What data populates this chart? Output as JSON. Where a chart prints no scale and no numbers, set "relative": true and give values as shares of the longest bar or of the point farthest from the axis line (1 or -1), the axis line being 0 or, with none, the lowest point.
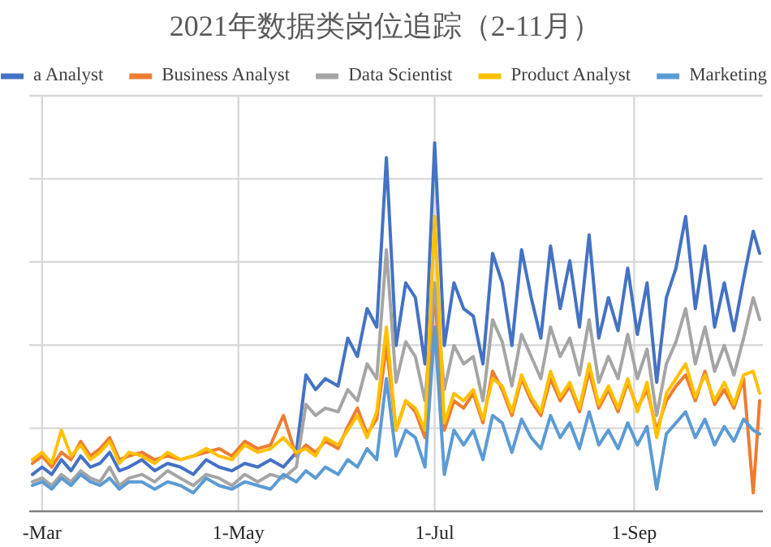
{
  "chart_data": {
    "type": "line",
    "title": "2021年数据类岗位追踪（2-11月）",
    "relative": true,
    "grid": true,
    "legend": "top",
    "marker": "none",
    "line_style": "solid",
    "xlim": [
      "2021-02-25",
      "2021-10-11"
    ],
    "xticks": [
      {
        "value": "2021-03-01",
        "label": "-Mar"
      },
      {
        "value": "2021-05-01",
        "label": "1-May"
      },
      {
        "value": "2021-07-01",
        "label": "1-Jul"
      },
      {
        "value": "2021-09-01",
        "label": "1-Sep"
      }
    ],
    "x": [
      "2021-02-26",
      "2021-03-01",
      "2021-03-04",
      "2021-03-07",
      "2021-03-10",
      "2021-03-13",
      "2021-03-16",
      "2021-03-19",
      "2021-03-22",
      "2021-03-25",
      "2021-03-28",
      "2021-04-01",
      "2021-04-05",
      "2021-04-09",
      "2021-04-13",
      "2021-04-17",
      "2021-04-21",
      "2021-04-25",
      "2021-04-29",
      "2021-05-03",
      "2021-05-07",
      "2021-05-11",
      "2021-05-15",
      "2021-05-19",
      "2021-05-22",
      "2021-05-25",
      "2021-05-28",
      "2021-06-01",
      "2021-06-04",
      "2021-06-07",
      "2021-06-10",
      "2021-06-13",
      "2021-06-16",
      "2021-06-19",
      "2021-06-22",
      "2021-06-25",
      "2021-06-28",
      "2021-07-01",
      "2021-07-04",
      "2021-07-07",
      "2021-07-10",
      "2021-07-13",
      "2021-07-16",
      "2021-07-19",
      "2021-07-22",
      "2021-07-25",
      "2021-07-28",
      "2021-07-31",
      "2021-08-03",
      "2021-08-06",
      "2021-08-09",
      "2021-08-12",
      "2021-08-15",
      "2021-08-18",
      "2021-08-21",
      "2021-08-24",
      "2021-08-27",
      "2021-08-30",
      "2021-09-02",
      "2021-09-05",
      "2021-09-08",
      "2021-09-11",
      "2021-09-14",
      "2021-09-17",
      "2021-09-20",
      "2021-09-23",
      "2021-09-26",
      "2021-09-29",
      "2021-10-02",
      "2021-10-05",
      "2021-10-08",
      "2021-10-10"
    ],
    "series": [
      {
        "name": "a Analyst",
        "color": "#4472c4",
        "values": [
          0.1,
          0.12,
          0.1,
          0.14,
          0.11,
          0.15,
          0.12,
          0.13,
          0.16,
          0.11,
          0.12,
          0.14,
          0.11,
          0.13,
          0.12,
          0.1,
          0.14,
          0.12,
          0.11,
          0.13,
          0.12,
          0.14,
          0.12,
          0.16,
          0.37,
          0.33,
          0.36,
          0.34,
          0.47,
          0.42,
          0.55,
          0.5,
          0.96,
          0.45,
          0.62,
          0.58,
          0.4,
          1.0,
          0.45,
          0.62,
          0.55,
          0.53,
          0.4,
          0.7,
          0.62,
          0.45,
          0.71,
          0.58,
          0.47,
          0.72,
          0.55,
          0.68,
          0.5,
          0.75,
          0.47,
          0.58,
          0.49,
          0.66,
          0.48,
          0.62,
          0.35,
          0.58,
          0.66,
          0.8,
          0.55,
          0.72,
          0.5,
          0.62,
          0.49,
          0.63,
          0.76,
          0.7
        ]
      },
      {
        "name": "Business Analyst",
        "color": "#ed7d31",
        "values": [
          0.13,
          0.15,
          0.12,
          0.16,
          0.14,
          0.19,
          0.15,
          0.17,
          0.2,
          0.14,
          0.15,
          0.16,
          0.14,
          0.15,
          0.14,
          0.15,
          0.16,
          0.17,
          0.15,
          0.19,
          0.17,
          0.18,
          0.26,
          0.15,
          0.18,
          0.16,
          0.19,
          0.17,
          0.23,
          0.28,
          0.21,
          0.25,
          0.45,
          0.22,
          0.3,
          0.27,
          0.2,
          0.6,
          0.22,
          0.3,
          0.28,
          0.32,
          0.24,
          0.38,
          0.33,
          0.26,
          0.36,
          0.3,
          0.26,
          0.36,
          0.3,
          0.34,
          0.27,
          0.38,
          0.28,
          0.33,
          0.27,
          0.35,
          0.28,
          0.33,
          0.22,
          0.3,
          0.34,
          0.37,
          0.3,
          0.38,
          0.29,
          0.33,
          0.28,
          0.36,
          0.05,
          0.3
        ]
      },
      {
        "name": "Data Scientist",
        "color": "#a5a5a5",
        "values": [
          0.08,
          0.09,
          0.07,
          0.1,
          0.08,
          0.11,
          0.09,
          0.08,
          0.12,
          0.07,
          0.09,
          0.1,
          0.08,
          0.11,
          0.09,
          0.07,
          0.1,
          0.09,
          0.07,
          0.1,
          0.08,
          0.1,
          0.09,
          0.12,
          0.29,
          0.26,
          0.28,
          0.27,
          0.33,
          0.3,
          0.4,
          0.36,
          0.71,
          0.35,
          0.46,
          0.42,
          0.3,
          0.62,
          0.33,
          0.45,
          0.4,
          0.42,
          0.3,
          0.52,
          0.46,
          0.34,
          0.48,
          0.42,
          0.36,
          0.5,
          0.42,
          0.47,
          0.37,
          0.52,
          0.35,
          0.42,
          0.36,
          0.48,
          0.36,
          0.44,
          0.26,
          0.4,
          0.46,
          0.55,
          0.4,
          0.5,
          0.38,
          0.45,
          0.37,
          0.47,
          0.58,
          0.52
        ]
      },
      {
        "name": "Product Analyst",
        "color": "#ffc000",
        "values": [
          0.14,
          0.16,
          0.13,
          0.22,
          0.15,
          0.18,
          0.14,
          0.16,
          0.19,
          0.13,
          0.16,
          0.15,
          0.13,
          0.16,
          0.14,
          0.15,
          0.17,
          0.15,
          0.14,
          0.18,
          0.16,
          0.17,
          0.2,
          0.16,
          0.17,
          0.15,
          0.2,
          0.18,
          0.22,
          0.26,
          0.2,
          0.27,
          0.5,
          0.22,
          0.3,
          0.28,
          0.22,
          0.8,
          0.24,
          0.32,
          0.3,
          0.33,
          0.25,
          0.36,
          0.34,
          0.27,
          0.37,
          0.31,
          0.27,
          0.38,
          0.31,
          0.35,
          0.28,
          0.4,
          0.29,
          0.34,
          0.28,
          0.36,
          0.27,
          0.35,
          0.2,
          0.32,
          0.36,
          0.4,
          0.31,
          0.37,
          0.3,
          0.35,
          0.29,
          0.37,
          0.38,
          0.32
        ]
      },
      {
        "name": "Marketing",
        "color": "#5b9bd5",
        "values": [
          0.07,
          0.08,
          0.06,
          0.09,
          0.07,
          0.1,
          0.08,
          0.07,
          0.09,
          0.06,
          0.08,
          0.08,
          0.06,
          0.08,
          0.07,
          0.05,
          0.09,
          0.07,
          0.06,
          0.08,
          0.07,
          0.06,
          0.1,
          0.08,
          0.11,
          0.09,
          0.12,
          0.1,
          0.14,
          0.12,
          0.17,
          0.14,
          0.36,
          0.15,
          0.22,
          0.2,
          0.12,
          0.5,
          0.1,
          0.22,
          0.18,
          0.22,
          0.14,
          0.26,
          0.24,
          0.16,
          0.25,
          0.2,
          0.17,
          0.26,
          0.2,
          0.24,
          0.17,
          0.27,
          0.18,
          0.22,
          0.17,
          0.24,
          0.18,
          0.23,
          0.06,
          0.21,
          0.24,
          0.27,
          0.2,
          0.25,
          0.18,
          0.23,
          0.19,
          0.25,
          0.22,
          0.21
        ]
      }
    ]
  }
}
